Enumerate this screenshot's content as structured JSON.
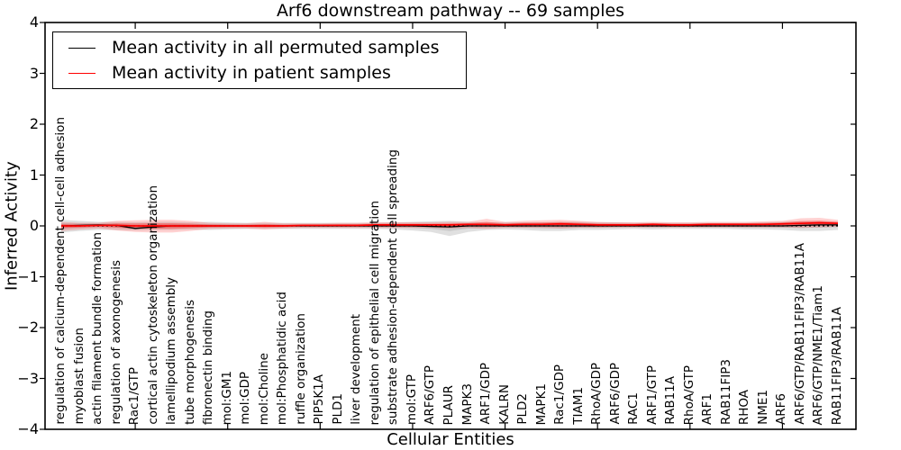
{
  "title": "Arf6 downstream pathway -- 69 samples",
  "chart_data": {
    "type": "line",
    "title": "Arf6 downstream pathway -- 69 samples",
    "xlabel": "Cellular Entities",
    "ylabel": "Inferred Activity",
    "ylim": [
      -4,
      4
    ],
    "yticks": [
      "4",
      "3",
      "2",
      "1",
      "0",
      "−1",
      "−2",
      "−3",
      "−4"
    ],
    "ytick_values": [
      4,
      3,
      2,
      1,
      0,
      -1,
      -2,
      -3,
      -4
    ],
    "xticks_every": 5,
    "xticks_offset": 4,
    "grid": false,
    "legend_position": "upper-left",
    "legend": [
      {
        "label": "Mean activity in all permuted samples",
        "color": "#000000"
      },
      {
        "label": "Mean activity in patient samples",
        "color": "#ff0000"
      }
    ],
    "zero_line": {
      "y": 0,
      "style": "dotted",
      "color": "#000000"
    },
    "categories": [
      "regulation of calcium-dependent cell-cell adhesion",
      "myoblast fusion",
      "actin filament bundle formation",
      "regulation of axonogenesis",
      "Rac1/GTP",
      "cortical actin cytoskeleton organization",
      "lamellipodium assembly",
      "tube morphogenesis",
      "fibronectin binding",
      "mol:GM1",
      "mol:GDP",
      "mol:Choline",
      "mol:Phosphatidic acid",
      "ruffle organization",
      "PIP5K1A",
      "PLD1",
      "liver development",
      "regulation of epithelial cell migration",
      "substrate adhesion-dependent cell spreading",
      "mol:GTP",
      "ARF6/GTP",
      "PLAUR",
      "MAPK3",
      "ARF1/GDP",
      "KALRN",
      "PLD2",
      "MAPK1",
      "Rac1/GDP",
      "TIAM1",
      "RhoA/GDP",
      "ARF6/GDP",
      "RAC1",
      "ARF1/GTP",
      "RAB11A",
      "RhoA/GTP",
      "ARF1",
      "RAB11FIP3",
      "RHOA",
      "NME1",
      "ARF6",
      "ARF6/GTP/RAB11FIP3/RAB11A",
      "ARF6/GTP/NME1/Tiam1",
      "RAB11FIP3/RAB11A"
    ],
    "series": [
      {
        "name": "Mean activity in all permuted samples",
        "color": "#000000",
        "band_color": "#999999",
        "mean": [
          0.0,
          0.01,
          0.02,
          0.01,
          -0.05,
          -0.02,
          0.0,
          0.0,
          0.0,
          0.0,
          0.0,
          0.0,
          0.0,
          0.0,
          0.0,
          0.0,
          0.0,
          0.0,
          0.0,
          0.0,
          -0.01,
          -0.02,
          0.0,
          0.0,
          0.0,
          0.0,
          0.0,
          0.0,
          0.0,
          0.0,
          0.0,
          0.0,
          0.0,
          0.0,
          0.0,
          0.0,
          0.0,
          0.0,
          0.0,
          0.0,
          0.01,
          0.02,
          0.02
        ],
        "upper": [
          0.12,
          0.1,
          0.08,
          0.08,
          0.07,
          0.08,
          0.08,
          0.07,
          0.08,
          0.07,
          0.06,
          0.06,
          0.06,
          0.06,
          0.06,
          0.06,
          0.06,
          0.06,
          0.07,
          0.08,
          0.09,
          0.1,
          0.08,
          0.07,
          0.07,
          0.07,
          0.07,
          0.08,
          0.08,
          0.07,
          0.07,
          0.06,
          0.06,
          0.06,
          0.06,
          0.06,
          0.06,
          0.06,
          0.07,
          0.08,
          0.09,
          0.09,
          0.08
        ],
        "lower": [
          -0.13,
          -0.1,
          -0.08,
          -0.08,
          -0.09,
          -0.08,
          -0.08,
          -0.07,
          -0.08,
          -0.07,
          -0.06,
          -0.06,
          -0.06,
          -0.06,
          -0.06,
          -0.06,
          -0.06,
          -0.06,
          -0.07,
          -0.09,
          -0.12,
          -0.2,
          -0.12,
          -0.08,
          -0.07,
          -0.08,
          -0.1,
          -0.1,
          -0.08,
          -0.08,
          -0.07,
          -0.06,
          -0.07,
          -0.06,
          -0.06,
          -0.06,
          -0.06,
          -0.07,
          -0.07,
          -0.08,
          -0.1,
          -0.1,
          -0.08
        ]
      },
      {
        "name": "Mean activity in patient samples",
        "color": "#ff0000",
        "band_color": "#ff0000",
        "mean": [
          0.0,
          0.0,
          0.01,
          0.01,
          0.0,
          0.0,
          0.0,
          0.0,
          0.0,
          0.0,
          0.0,
          0.0,
          0.0,
          0.01,
          0.01,
          0.01,
          0.01,
          0.02,
          0.02,
          0.02,
          0.02,
          0.02,
          0.03,
          0.03,
          0.02,
          0.03,
          0.03,
          0.04,
          0.03,
          0.02,
          0.02,
          0.02,
          0.03,
          0.02,
          0.02,
          0.03,
          0.03,
          0.03,
          0.03,
          0.04,
          0.05,
          0.06,
          0.05
        ],
        "upper": [
          0.08,
          0.06,
          0.06,
          0.1,
          0.11,
          0.12,
          0.12,
          0.1,
          0.06,
          0.05,
          0.05,
          0.08,
          0.05,
          0.05,
          0.05,
          0.06,
          0.06,
          0.07,
          0.07,
          0.07,
          0.07,
          0.08,
          0.08,
          0.14,
          0.08,
          0.1,
          0.11,
          0.12,
          0.1,
          0.08,
          0.07,
          0.07,
          0.08,
          0.07,
          0.07,
          0.08,
          0.08,
          0.08,
          0.09,
          0.1,
          0.15,
          0.16,
          0.12
        ],
        "lower": [
          -0.1,
          -0.07,
          -0.05,
          -0.09,
          -0.12,
          -0.13,
          -0.13,
          -0.1,
          -0.06,
          -0.05,
          -0.05,
          -0.07,
          -0.05,
          -0.04,
          -0.04,
          -0.04,
          -0.04,
          -0.04,
          -0.04,
          -0.04,
          -0.04,
          -0.05,
          -0.04,
          -0.06,
          -0.04,
          -0.04,
          -0.04,
          -0.05,
          -0.04,
          -0.04,
          -0.03,
          -0.03,
          -0.03,
          -0.03,
          -0.03,
          -0.03,
          -0.03,
          -0.03,
          -0.03,
          -0.03,
          -0.04,
          -0.03,
          -0.02
        ]
      }
    ]
  }
}
